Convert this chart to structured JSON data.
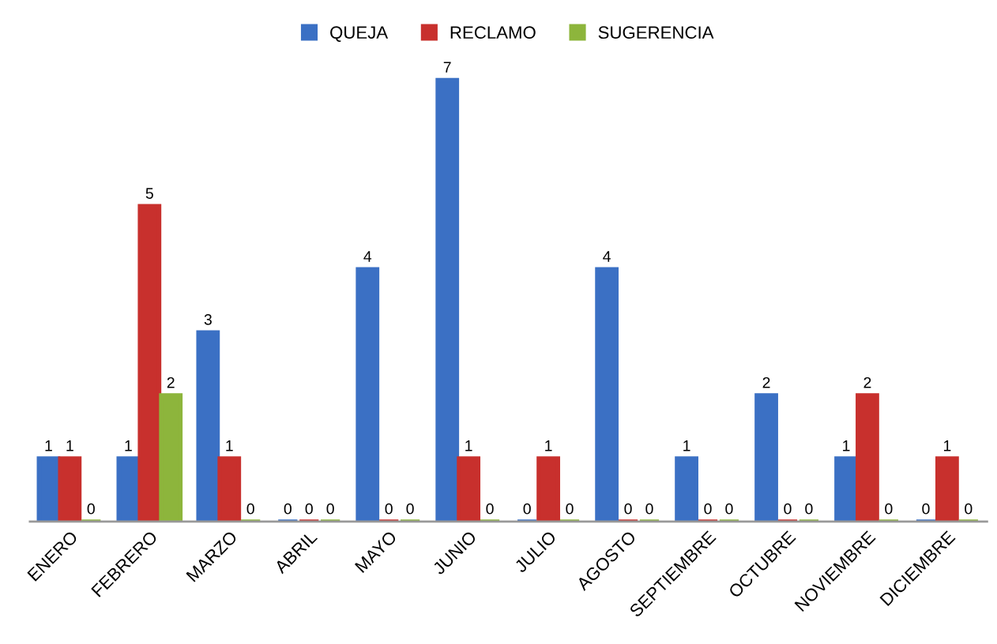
{
  "chart_data": {
    "type": "bar",
    "categories": [
      "ENERO",
      "FEBRERO",
      "MARZO",
      "ABRIL",
      "MAYO",
      "JUNIO",
      "JULIO",
      "AGOSTO",
      "SEPTIEMBRE",
      "OCTUBRE",
      "NOVIEMBRE",
      "DICIEMBRE"
    ],
    "series": [
      {
        "name": "QUEJA",
        "color": "#3b70c4",
        "values": [
          1,
          1,
          3,
          0,
          4,
          7,
          0,
          4,
          1,
          2,
          1,
          0
        ]
      },
      {
        "name": "RECLAMO",
        "color": "#c8302d",
        "values": [
          1,
          5,
          1,
          0,
          0,
          1,
          1,
          0,
          0,
          0,
          2,
          1
        ]
      },
      {
        "name": "SUGERENCIA",
        "color": "#8db53c",
        "values": [
          0,
          2,
          0,
          0,
          0,
          0,
          0,
          0,
          0,
          0,
          0,
          0
        ]
      }
    ],
    "data_labels": true,
    "legend": "top",
    "grid": false,
    "tick_labels": "x"
  }
}
